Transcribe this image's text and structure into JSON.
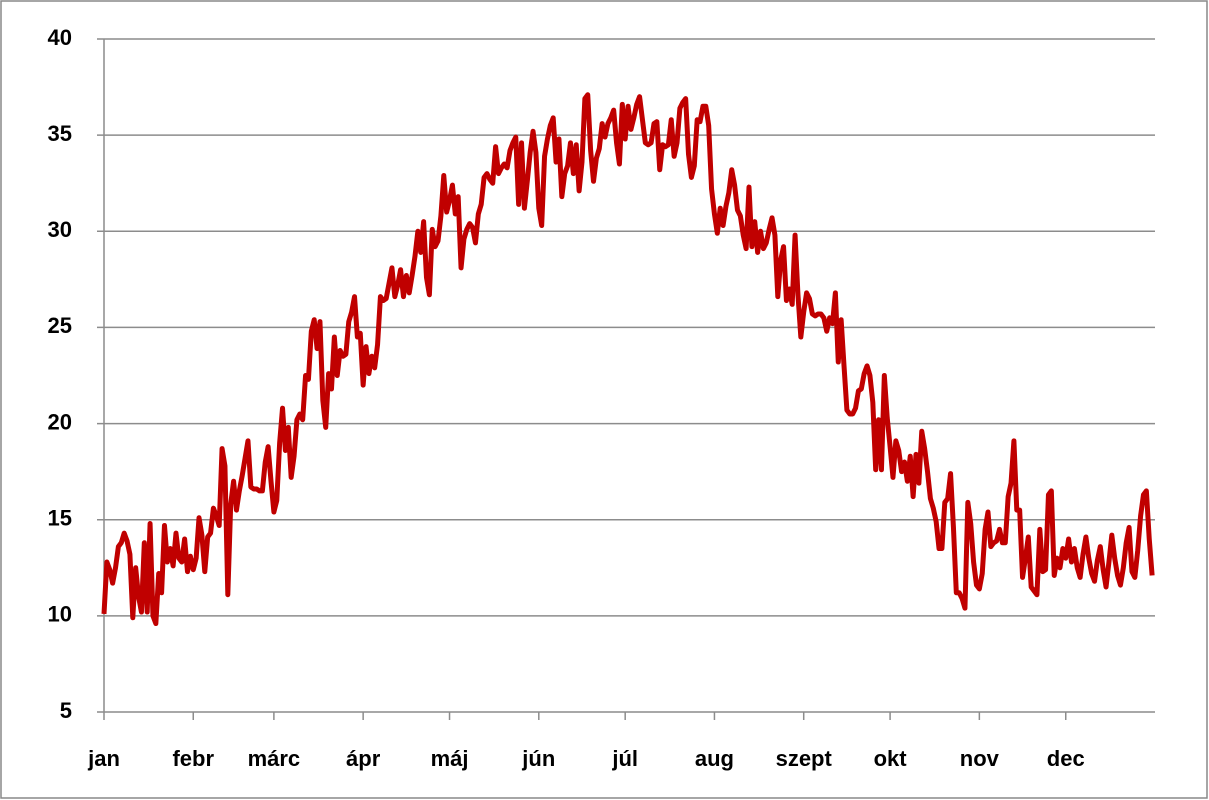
{
  "chart_data": {
    "type": "line",
    "xlim": [
      0,
      365
    ],
    "xticks": [
      {
        "value": 0,
        "label": "jan"
      },
      {
        "value": 31,
        "label": "febr"
      },
      {
        "value": 59,
        "label": "márc"
      },
      {
        "value": 90,
        "label": "ápr"
      },
      {
        "value": 120,
        "label": "máj"
      },
      {
        "value": 151,
        "label": "jún"
      },
      {
        "value": 181,
        "label": "júl"
      },
      {
        "value": 212,
        "label": "aug"
      },
      {
        "value": 243,
        "label": "szept"
      },
      {
        "value": 273,
        "label": "okt"
      },
      {
        "value": 304,
        "label": "nov"
      },
      {
        "value": 334,
        "label": "dec"
      }
    ],
    "ylim": [
      5,
      40
    ],
    "yticks": [
      5,
      10,
      15,
      20,
      25,
      30,
      35,
      40
    ],
    "grid": true,
    "series": [
      {
        "color": "#c00000",
        "values": [
          10.1,
          12.8,
          12.4,
          11.7,
          12.5,
          13.6,
          13.8,
          14.3,
          13.9,
          13.2,
          9.9,
          12.5,
          11.0,
          10.2,
          13.8,
          10.2,
          14.8,
          10.0,
          9.6,
          12.2,
          11.2,
          14.7,
          12.8,
          13.5,
          12.6,
          14.3,
          13.0,
          12.8,
          14.0,
          12.3,
          13.1,
          12.4,
          13.0,
          15.1,
          14.2,
          12.3,
          14.1,
          14.3,
          15.6,
          15.2,
          14.7,
          18.7,
          17.8,
          11.1,
          15.8,
          17.0,
          15.5,
          16.5,
          17.3,
          18.2,
          19.1,
          16.7,
          16.6,
          16.6,
          16.5,
          16.5,
          18.0,
          18.8,
          17.0,
          15.4,
          16.0,
          19.0,
          20.8,
          18.6,
          19.8,
          17.2,
          18.3,
          20.2,
          20.5,
          20.2,
          22.5,
          22.3,
          24.8,
          25.4,
          23.9,
          25.3,
          21.2,
          19.8,
          22.6,
          21.8,
          24.5,
          22.5,
          23.8,
          23.5,
          23.6,
          25.3,
          25.8,
          26.6,
          24.5,
          24.7,
          22.0,
          24.0,
          22.6,
          23.5,
          22.9,
          24.1,
          26.6,
          26.4,
          26.5,
          27.3,
          28.1,
          26.6,
          27.2,
          28.0,
          26.6,
          27.7,
          26.8,
          27.7,
          28.7,
          30.0,
          28.9,
          30.5,
          27.6,
          26.7,
          30.1,
          29.2,
          29.5,
          30.8,
          32.9,
          31.0,
          31.6,
          32.4,
          30.9,
          31.8,
          28.1,
          29.6,
          30.1,
          30.4,
          30.2,
          29.4,
          30.9,
          31.4,
          32.8,
          33.0,
          32.7,
          32.5,
          34.4,
          33.0,
          33.3,
          33.5,
          33.3,
          34.2,
          34.6,
          34.9,
          31.4,
          34.6,
          31.2,
          32.6,
          34.1,
          35.2,
          34.1,
          31.2,
          30.3,
          33.9,
          34.8,
          35.5,
          35.9,
          33.6,
          34.8,
          31.8,
          33.0,
          33.4,
          34.6,
          33.0,
          34.5,
          32.1,
          33.6,
          36.9,
          37.1,
          34.2,
          32.6,
          33.8,
          34.3,
          35.6,
          34.9,
          35.6,
          35.9,
          36.3,
          34.6,
          33.5,
          36.6,
          34.8,
          36.5,
          35.3,
          35.9,
          36.6,
          37.0,
          35.8,
          34.6,
          34.5,
          34.6,
          35.6,
          35.7,
          33.2,
          34.5,
          34.4,
          34.5,
          35.8,
          33.9,
          34.6,
          36.4,
          36.7,
          36.9,
          34.0,
          32.8,
          33.4,
          35.8,
          35.7,
          36.5,
          36.5,
          35.5,
          32.2,
          30.9,
          29.9,
          31.2,
          30.3,
          31.3,
          32.0,
          33.2,
          32.4,
          31.1,
          30.8,
          29.8,
          29.1,
          32.3,
          29.2,
          30.5,
          28.9,
          30.0,
          29.1,
          29.4,
          30.1,
          30.7,
          29.8,
          26.6,
          28.5,
          29.2,
          26.4,
          27.0,
          26.2,
          29.8,
          26.7,
          24.5,
          25.8,
          26.8,
          26.5,
          25.7,
          25.6,
          25.7,
          25.7,
          25.5,
          24.8,
          25.5,
          25.2,
          26.8,
          23.2,
          25.4,
          23.0,
          20.7,
          20.5,
          20.5,
          20.8,
          21.7,
          21.8,
          22.6,
          23.0,
          22.5,
          21.1,
          17.6,
          20.2,
          17.6,
          22.5,
          20.3,
          18.8,
          17.2,
          19.1,
          18.6,
          17.5,
          18.0,
          17.0,
          18.3,
          16.2,
          18.4,
          16.9,
          19.6,
          18.7,
          17.5,
          16.1,
          15.6,
          14.9,
          13.5,
          13.5,
          15.9,
          16.1,
          17.4,
          14.6,
          11.2,
          11.2,
          10.9,
          10.4,
          15.9,
          14.8,
          12.8,
          11.6,
          11.4,
          12.2,
          14.5,
          15.4,
          13.6,
          13.8,
          13.9,
          14.5,
          13.8,
          13.8,
          16.2,
          16.9,
          19.1,
          15.5,
          15.5,
          12.0,
          13.0,
          14.1,
          11.5,
          11.3,
          11.1,
          14.5,
          12.3,
          12.4,
          16.3,
          16.5,
          12.1,
          13.0,
          12.5,
          13.5,
          13.0,
          14.0,
          12.8,
          13.5,
          12.5,
          12.0,
          13.2,
          14.1,
          13.0,
          12.2,
          11.8,
          12.9,
          13.6,
          12.4,
          11.5,
          12.8,
          14.2,
          13.0,
          12.1,
          11.6,
          12.5,
          13.8,
          14.6,
          12.3,
          12.0,
          13.4,
          15.2,
          16.3,
          16.5,
          14.0,
          12.1
        ]
      }
    ]
  }
}
